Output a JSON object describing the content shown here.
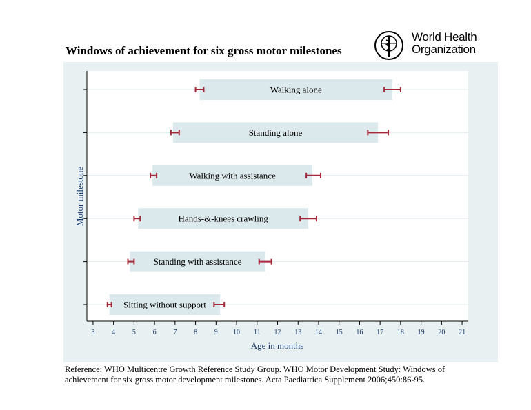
{
  "title": "Windows of achievement for six gross motor milestones",
  "logo": {
    "line1": "World Health",
    "line2": "Organization"
  },
  "reference": "Reference: WHO Multicentre Growth Reference Study Group. WHO Motor Development Study: Windows of achievement for six gross motor development milestones. Acta Paediatrica Supplement 2006;450:86-95.",
  "chart_data": {
    "type": "bar",
    "orientation": "horizontal-range",
    "xlabel": "Age in months",
    "ylabel": "Motor milestone",
    "xlim": [
      2.7,
      21.3
    ],
    "xticks": [
      3,
      4,
      5,
      6,
      7,
      8,
      9,
      10,
      11,
      12,
      13,
      14,
      15,
      16,
      17,
      18,
      19,
      20,
      21
    ],
    "grid": true,
    "colors": {
      "bar": "#dce9ec",
      "ci": "#a3283a",
      "panel": "#e8f0f2",
      "axis": "#000000",
      "label": "#1a3a6b"
    },
    "series": [
      {
        "name": "Walking alone",
        "start": 8.2,
        "end": 17.6,
        "start_ci": [
          8.0,
          8.4
        ],
        "end_ci": [
          17.2,
          18.0
        ]
      },
      {
        "name": "Standing alone",
        "start": 6.9,
        "end": 16.9,
        "start_ci": [
          6.8,
          7.2
        ],
        "end_ci": [
          16.4,
          17.4
        ]
      },
      {
        "name": "Walking with assistance",
        "start": 5.9,
        "end": 13.7,
        "start_ci": [
          5.8,
          6.1
        ],
        "end_ci": [
          13.4,
          14.1
        ]
      },
      {
        "name": "Hands-&-knees crawling",
        "start": 5.2,
        "end": 13.5,
        "start_ci": [
          5.0,
          5.3
        ],
        "end_ci": [
          13.1,
          13.9
        ]
      },
      {
        "name": "Standing with assistance",
        "start": 4.8,
        "end": 11.4,
        "start_ci": [
          4.7,
          5.0
        ],
        "end_ci": [
          11.1,
          11.7
        ]
      },
      {
        "name": "Sitting without support",
        "start": 3.8,
        "end": 9.2,
        "start_ci": [
          3.7,
          3.9
        ],
        "end_ci": [
          8.9,
          9.4
        ]
      }
    ]
  }
}
